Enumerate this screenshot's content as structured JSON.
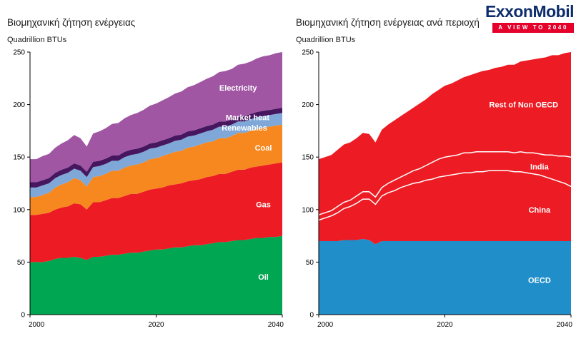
{
  "brand": {
    "logo_text": "ExxonMobil",
    "banner_text": "A VIEW TO 2040",
    "logo_color": "#0d2d6c",
    "banner_bg": "#e4002b"
  },
  "chart_data": [
    {
      "type": "area",
      "stacked": true,
      "title": "Βιομηχανική ζήτηση ενέργειας",
      "subtitle": "Quadrillion BTUs",
      "xlim": [
        2000,
        2040
      ],
      "ylim": [
        0,
        250
      ],
      "yticks": [
        0,
        50,
        100,
        150,
        200,
        250
      ],
      "xticks": [
        2000,
        2020,
        2040
      ],
      "grid": false,
      "legend": "inside-area-labels",
      "x": [
        2000,
        2001,
        2002,
        2003,
        2004,
        2005,
        2006,
        2007,
        2008,
        2009,
        2010,
        2011,
        2012,
        2013,
        2014,
        2015,
        2016,
        2017,
        2018,
        2019,
        2020,
        2021,
        2022,
        2023,
        2024,
        2025,
        2026,
        2027,
        2028,
        2029,
        2030,
        2031,
        2032,
        2033,
        2034,
        2035,
        2036,
        2037,
        2038,
        2039,
        2040
      ],
      "series": [
        {
          "name": "Oil",
          "color": "#00a651",
          "label_at": [
            2037,
            36
          ],
          "values": [
            50,
            50,
            50,
            51,
            53,
            54,
            54,
            55,
            54,
            52,
            55,
            55,
            56,
            57,
            57,
            58,
            59,
            59,
            60,
            61,
            62,
            62,
            63,
            64,
            64,
            65,
            66,
            66,
            67,
            68,
            69,
            69,
            70,
            71,
            71,
            72,
            73,
            73,
            74,
            74,
            75
          ]
        },
        {
          "name": "Gas",
          "color": "#ed1c24",
          "label_at": [
            2037,
            105
          ],
          "values": [
            45,
            45,
            46,
            46,
            47,
            48,
            49,
            51,
            51,
            48,
            52,
            52,
            53,
            54,
            54,
            55,
            56,
            56,
            57,
            58,
            58,
            59,
            60,
            60,
            61,
            62,
            62,
            63,
            64,
            64,
            65,
            65,
            66,
            67,
            67,
            68,
            68,
            69,
            69,
            70,
            70
          ]
        },
        {
          "name": "Coal",
          "color": "#f6881f",
          "label_at": [
            2037,
            159
          ],
          "values": [
            17,
            17,
            18,
            19,
            21,
            22,
            23,
            24,
            23,
            22,
            24,
            25,
            25,
            26,
            26,
            27,
            27,
            28,
            28,
            29,
            29,
            30,
            30,
            31,
            31,
            32,
            32,
            33,
            33,
            33,
            34,
            34,
            34,
            35,
            35,
            35,
            36,
            36,
            36,
            36,
            36
          ]
        },
        {
          "name": "Renewables",
          "color": "#7fa8d9",
          "label_at": [
            2034,
            178
          ],
          "values": [
            9,
            9,
            9,
            9,
            9,
            9,
            9,
            9,
            9,
            9,
            9.5,
            9.5,
            9.5,
            9.5,
            9.5,
            10,
            10,
            10,
            10,
            10,
            10,
            10,
            10,
            10.5,
            10.5,
            10.5,
            10.5,
            10.5,
            10.5,
            11,
            11,
            11,
            11,
            11,
            11,
            11,
            11,
            11,
            11,
            11,
            11
          ]
        },
        {
          "name": "Market heat",
          "color": "#46175f",
          "label_at": [
            2034.5,
            188
          ],
          "values": [
            5,
            5,
            5,
            5,
            5,
            5,
            5,
            5,
            5,
            5,
            5,
            5,
            5,
            5,
            5,
            5,
            5,
            5,
            5,
            5,
            5,
            5,
            5,
            5,
            5,
            5,
            5,
            5,
            5,
            5,
            5,
            5,
            5,
            5,
            5,
            5,
            5,
            5,
            5,
            5,
            5
          ]
        },
        {
          "name": "Electricity",
          "color": "#a156a4",
          "label_at": [
            2033,
            216
          ],
          "values": [
            22,
            22,
            23,
            23,
            24,
            25,
            26,
            27,
            26,
            24,
            27,
            28,
            29,
            30,
            31,
            32,
            33,
            34,
            35,
            36,
            37,
            38,
            39,
            40,
            41,
            42,
            43,
            44,
            45,
            46,
            47,
            48,
            48,
            49,
            50,
            50,
            51,
            52,
            52,
            53,
            53
          ]
        }
      ]
    },
    {
      "type": "area",
      "stacked": true,
      "title": "Βιομηχανική ζήτηση ενέργειας ανά περιοχή",
      "subtitle": "Quadrillion BTUs",
      "xlim": [
        2000,
        2040
      ],
      "ylim": [
        0,
        250
      ],
      "yticks": [
        0,
        50,
        100,
        150,
        200,
        250
      ],
      "xticks": [
        2000,
        2020,
        2040
      ],
      "grid": false,
      "legend": "inside-area-labels",
      "x": [
        2000,
        2001,
        2002,
        2003,
        2004,
        2005,
        2006,
        2007,
        2008,
        2009,
        2010,
        2011,
        2012,
        2013,
        2014,
        2015,
        2016,
        2017,
        2018,
        2019,
        2020,
        2021,
        2022,
        2023,
        2024,
        2025,
        2026,
        2027,
        2028,
        2029,
        2030,
        2031,
        2032,
        2033,
        2034,
        2035,
        2036,
        2037,
        2038,
        2039,
        2040
      ],
      "series": [
        {
          "name": "OECD",
          "color": "#1f8ec9",
          "label_at": [
            2035,
            33
          ],
          "values": [
            70,
            70,
            70,
            70,
            71,
            71,
            71,
            72,
            71,
            67,
            70,
            70,
            70,
            70,
            70,
            70,
            70,
            70,
            70,
            70,
            70,
            70,
            70,
            70,
            70,
            70,
            70,
            70,
            70,
            70,
            70,
            70,
            70,
            70,
            70,
            70,
            70,
            70,
            70,
            70,
            70
          ]
        },
        {
          "name": "China",
          "color": "#ed1c24",
          "label_at": [
            2035,
            100
          ],
          "separator_top": true,
          "values": [
            20,
            22,
            24,
            27,
            30,
            32,
            35,
            38,
            39,
            38,
            43,
            46,
            48,
            51,
            53,
            55,
            56,
            58,
            59,
            61,
            62,
            63,
            64,
            65,
            65,
            66,
            66,
            67,
            67,
            67,
            67,
            66,
            66,
            65,
            64,
            63,
            61,
            59,
            57,
            55,
            52
          ]
        },
        {
          "name": "India",
          "color": "#ed1c24",
          "label_at": [
            2035,
            141
          ],
          "separator_top": true,
          "values": [
            5,
            5,
            5,
            6,
            6,
            6,
            7,
            7,
            7,
            7,
            8,
            9,
            10,
            10,
            11,
            12,
            13,
            14,
            16,
            17,
            18,
            18,
            18,
            19,
            19,
            19,
            19,
            18,
            18,
            18,
            18,
            18,
            19,
            19,
            20,
            20,
            21,
            23,
            24,
            26,
            28
          ]
        },
        {
          "name": "Rest of Non OECD",
          "color": "#ed1c24",
          "label_at": [
            2032.5,
            200
          ],
          "values": [
            53,
            53,
            53,
            54,
            55,
            55,
            55,
            56,
            55,
            52,
            55,
            56,
            57,
            58,
            59,
            60,
            62,
            63,
            65,
            66,
            68,
            69,
            71,
            72,
            74,
            75,
            77,
            78,
            80,
            81,
            83,
            84,
            86,
            88,
            89,
            91,
            93,
            95,
            96,
            98,
            100
          ]
        }
      ]
    }
  ]
}
